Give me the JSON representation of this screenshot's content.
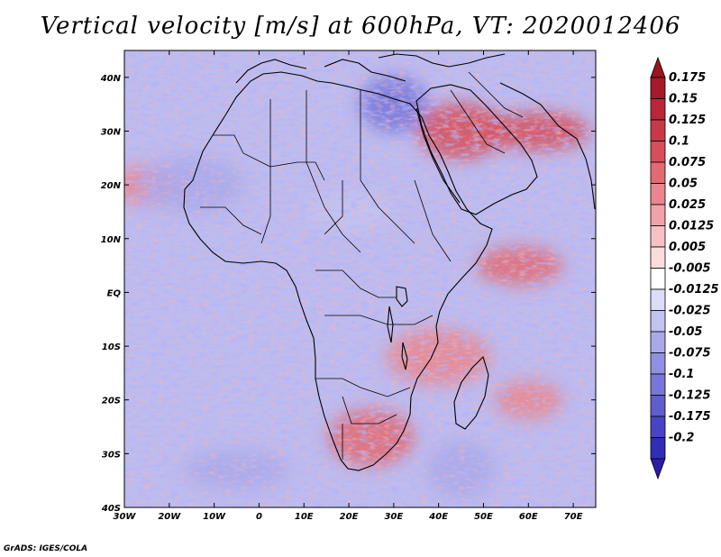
{
  "title": "Vertical velocity [m/s] at 600hPa, VT: 2020012406",
  "credit": "GrADS: IGES/COLA",
  "map": {
    "lon_range": [
      -30,
      75
    ],
    "lat_range": [
      -40,
      45
    ],
    "lat_ticks": [
      {
        "value": 40,
        "label": "40N"
      },
      {
        "value": 30,
        "label": "30N"
      },
      {
        "value": 20,
        "label": "20N"
      },
      {
        "value": 10,
        "label": "10N"
      },
      {
        "value": 0,
        "label": "EQ"
      },
      {
        "value": -10,
        "label": "10S"
      },
      {
        "value": -20,
        "label": "20S"
      },
      {
        "value": -30,
        "label": "30S"
      },
      {
        "value": -40,
        "label": "40S"
      }
    ],
    "lon_ticks": [
      {
        "value": -30,
        "label": "30W"
      },
      {
        "value": -20,
        "label": "20W"
      },
      {
        "value": -10,
        "label": "10W"
      },
      {
        "value": 0,
        "label": "0"
      },
      {
        "value": 10,
        "label": "10E"
      },
      {
        "value": 20,
        "label": "20E"
      },
      {
        "value": 30,
        "label": "30E"
      },
      {
        "value": 40,
        "label": "40E"
      },
      {
        "value": 50,
        "label": "50E"
      },
      {
        "value": 60,
        "label": "60E"
      },
      {
        "value": 70,
        "label": "70E"
      }
    ],
    "field_features": [
      {
        "lon": -25,
        "lat": 20,
        "value": 0.05
      },
      {
        "lon": 45,
        "lat": 30,
        "value": 0.1
      },
      {
        "lon": 62,
        "lat": 30,
        "value": 0.1
      },
      {
        "lon": 30,
        "lat": 35,
        "value": -0.1
      },
      {
        "lon": 58,
        "lat": 5,
        "value": 0.075
      },
      {
        "lon": 40,
        "lat": -12,
        "value": 0.05
      },
      {
        "lon": 60,
        "lat": -20,
        "value": 0.05
      },
      {
        "lon": 25,
        "lat": -27,
        "value": 0.075
      },
      {
        "lon": -5,
        "lat": -33,
        "value": -0.05
      },
      {
        "lon": 45,
        "lat": -33,
        "value": -0.05
      },
      {
        "lon": 20,
        "lat": 15,
        "value": -0.025
      },
      {
        "lon": -15,
        "lat": 20,
        "value": -0.05
      }
    ]
  },
  "colorbar": {
    "levels": [
      {
        "label": "0.175",
        "color": "#a51b2b"
      },
      {
        "label": "0.15",
        "color": "#b8283a"
      },
      {
        "label": "0.125",
        "color": "#c83a48"
      },
      {
        "label": "0.1",
        "color": "#d64f5b"
      },
      {
        "label": "0.075",
        "color": "#e26a73"
      },
      {
        "label": "0.05",
        "color": "#ea868d"
      },
      {
        "label": "0.025",
        "color": "#f1a3a7"
      },
      {
        "label": "0.0125",
        "color": "#f7c1c3"
      },
      {
        "label": "0.005",
        "color": "#fbdcdd"
      },
      {
        "label": "-0.005",
        "color": "#ffffff"
      },
      {
        "label": "-0.0125",
        "color": "#dcdcf8"
      },
      {
        "label": "-0.025",
        "color": "#c3c3f1"
      },
      {
        "label": "-0.05",
        "color": "#a9a9ea"
      },
      {
        "label": "-0.075",
        "color": "#9090e2"
      },
      {
        "label": "-0.1",
        "color": "#7777d9"
      },
      {
        "label": "-0.125",
        "color": "#5e5ecf"
      },
      {
        "label": "-0.175",
        "color": "#4646c4"
      },
      {
        "label": "-0.2",
        "color": "#2f2fb5"
      }
    ],
    "top_color": "#9b1420",
    "bottom_color": "#2a1ea8"
  }
}
